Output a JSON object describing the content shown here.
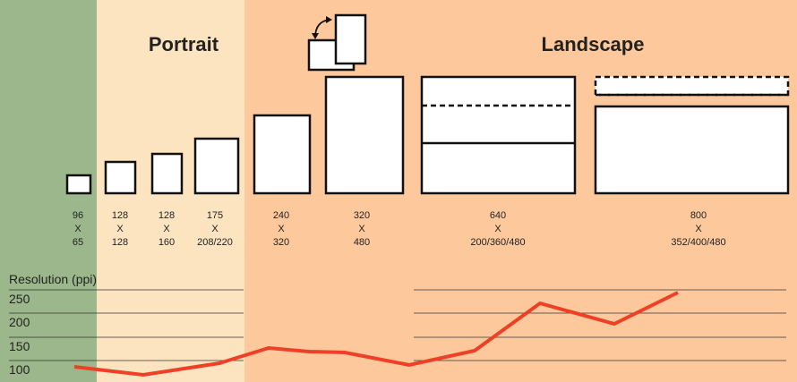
{
  "header": {
    "portrait": "Portrait",
    "landscape": "Landscape"
  },
  "devices": [
    {
      "width": "96",
      "separator": "X",
      "height": "65"
    },
    {
      "width": "128",
      "separator": "X",
      "height": "128"
    },
    {
      "width": "128",
      "separator": "X",
      "height": "160"
    },
    {
      "width": "175",
      "separator": "X",
      "height": "208/220"
    },
    {
      "width": "240",
      "separator": "X",
      "height": "320"
    },
    {
      "width": "320",
      "separator": "X",
      "height": "480"
    },
    {
      "width": "640",
      "separator": "X",
      "height": "200/360/480"
    },
    {
      "width": "800",
      "separator": "X",
      "height": "352/400/480"
    }
  ],
  "resolution": {
    "label": "Resolution (ppi)",
    "ticks": [
      "250",
      "200",
      "150",
      "100"
    ]
  }
}
